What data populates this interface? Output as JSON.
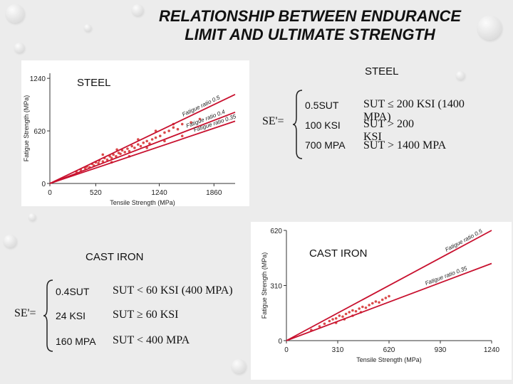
{
  "slide": {
    "title": "RELATIONSHIP BETWEEN ENDURANCE LIMIT AND ULTIMATE STRENGTH",
    "steel_label_chart": "STEEL",
    "steel_label_right": "STEEL",
    "cast_iron_label_left": "CAST IRON",
    "cast_iron_label_right": "CAST IRON"
  },
  "steel_formula": {
    "lhs": "SE'=",
    "rows": [
      {
        "value": "0.5SUT",
        "condition": "SUT ≤ 200 KSI (1400 MPA)"
      },
      {
        "value": "100 KSI",
        "condition": "SUT > 200 KSI"
      },
      {
        "value": "700 MPA",
        "condition": "SUT > 1400 MPA"
      }
    ]
  },
  "cast_iron_formula": {
    "lhs": "SE'=",
    "rows": [
      {
        "value": "0.4SUT",
        "condition": "SUT < 60 KSI (400 MPA)"
      },
      {
        "value": "24 KSI",
        "condition": "SUT ≥ 60 KSI"
      },
      {
        "value": "160 MPA",
        "condition": "SUT < 400 MPA"
      }
    ]
  },
  "chart_data": [
    {
      "type": "scatter",
      "name": "steel",
      "xlabel": "Tensile Strength (MPa)",
      "ylabel": "Fatigue Strength (MPa)",
      "xticks": [
        "0",
        "520",
        "1240",
        "1860"
      ],
      "yticks": [
        "0",
        "620",
        "1240"
      ],
      "xlim": [
        0,
        2100
      ],
      "ylim": [
        0,
        1300
      ],
      "lines": [
        {
          "label": "Fatigue ratio 0.5",
          "slope": 0.5
        },
        {
          "label": "Fatigue ratio 0.4",
          "slope": 0.4
        },
        {
          "label": "Fatigue ratio 0.35",
          "slope": 0.35
        }
      ],
      "points": [
        [
          300,
          140
        ],
        [
          350,
          160
        ],
        [
          400,
          180
        ],
        [
          420,
          200
        ],
        [
          450,
          190
        ],
        [
          480,
          230
        ],
        [
          500,
          210
        ],
        [
          520,
          250
        ],
        [
          550,
          240
        ],
        [
          560,
          270
        ],
        [
          600,
          260
        ],
        [
          620,
          300
        ],
        [
          650,
          280
        ],
        [
          680,
          320
        ],
        [
          700,
          300
        ],
        [
          720,
          340
        ],
        [
          750,
          320
        ],
        [
          780,
          360
        ],
        [
          800,
          350
        ],
        [
          820,
          390
        ],
        [
          850,
          370
        ],
        [
          880,
          410
        ],
        [
          900,
          380
        ],
        [
          930,
          440
        ],
        [
          960,
          420
        ],
        [
          1000,
          460
        ],
        [
          1030,
          440
        ],
        [
          1060,
          480
        ],
        [
          1100,
          500
        ],
        [
          1130,
          470
        ],
        [
          1160,
          520
        ],
        [
          1200,
          540
        ],
        [
          1250,
          560
        ],
        [
          1300,
          600
        ],
        [
          1350,
          620
        ],
        [
          1400,
          660
        ],
        [
          1450,
          640
        ],
        [
          1500,
          700
        ],
        [
          1600,
          720
        ],
        [
          1700,
          760
        ],
        [
          700,
          250
        ],
        [
          900,
          320
        ],
        [
          1100,
          420
        ],
        [
          1300,
          500
        ],
        [
          1500,
          560
        ],
        [
          600,
          340
        ],
        [
          760,
          400
        ],
        [
          1000,
          520
        ],
        [
          1200,
          620
        ],
        [
          1400,
          700
        ]
      ]
    },
    {
      "type": "scatter",
      "name": "cast-iron",
      "xlabel": "Tensile Strength (MPa)",
      "ylabel": "Fatigue Strength (MPa)",
      "xticks": [
        "0",
        "310",
        "620",
        "930",
        "1240"
      ],
      "yticks": [
        "0",
        "310",
        "620"
      ],
      "xlim": [
        0,
        1240
      ],
      "ylim": [
        0,
        620
      ],
      "lines": [
        {
          "label": "Fatigue ratio 0.5",
          "slope": 0.5
        },
        {
          "label": "Fatigue ratio 0.35",
          "slope": 0.35
        }
      ],
      "points": [
        [
          150,
          60
        ],
        [
          200,
          80
        ],
        [
          230,
          95
        ],
        [
          260,
          110
        ],
        [
          280,
          120
        ],
        [
          300,
          125
        ],
        [
          320,
          140
        ],
        [
          340,
          135
        ],
        [
          360,
          150
        ],
        [
          380,
          160
        ],
        [
          400,
          170
        ],
        [
          420,
          165
        ],
        [
          440,
          180
        ],
        [
          460,
          190
        ],
        [
          480,
          185
        ],
        [
          500,
          200
        ],
        [
          520,
          210
        ],
        [
          540,
          220
        ],
        [
          560,
          215
        ],
        [
          580,
          230
        ],
        [
          600,
          240
        ],
        [
          620,
          250
        ],
        [
          300,
          100
        ],
        [
          350,
          120
        ],
        [
          400,
          140
        ],
        [
          450,
          160
        ]
      ]
    }
  ]
}
